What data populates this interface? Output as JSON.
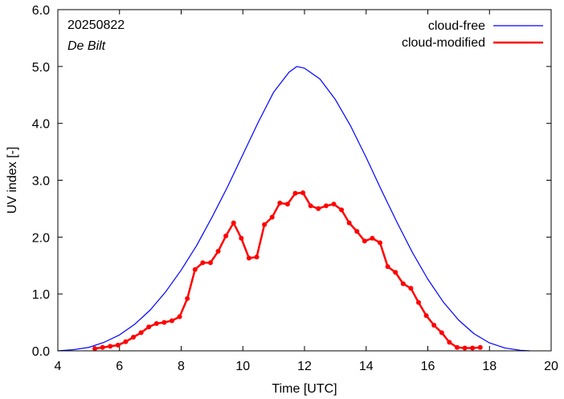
{
  "chart_data": {
    "type": "line",
    "annotations": {
      "date": "20250822",
      "location": "De Bilt"
    },
    "xlabel": "Time  [UTC]",
    "ylabel": "UV index  [-]",
    "xlim": [
      4,
      20
    ],
    "ylim": [
      0,
      6
    ],
    "xticks": [
      4,
      6,
      8,
      10,
      12,
      14,
      16,
      18,
      20
    ],
    "xtick_labels": [
      "4",
      "6",
      "8",
      "10",
      "12",
      "14",
      "16",
      "18",
      "20"
    ],
    "yticks": [
      0,
      1,
      2,
      3,
      4,
      5,
      6
    ],
    "ytick_labels": [
      "0.0",
      "1.0",
      "2.0",
      "3.0",
      "4.0",
      "5.0",
      "6.0"
    ],
    "grid": false,
    "legend_position": "top-right",
    "series": [
      {
        "name": "cloud-free",
        "color": "#0000ff",
        "markers": false,
        "x": [
          4.0,
          4.5,
          5.0,
          5.5,
          6.0,
          6.5,
          7.0,
          7.5,
          8.0,
          8.5,
          9.0,
          9.5,
          10.0,
          10.5,
          11.0,
          11.5,
          11.75,
          12.0,
          12.5,
          13.0,
          13.5,
          14.0,
          14.5,
          15.0,
          15.5,
          16.0,
          16.5,
          17.0,
          17.5,
          18.0,
          18.5,
          19.0,
          19.3
        ],
        "y": [
          0.0,
          0.02,
          0.06,
          0.15,
          0.28,
          0.47,
          0.72,
          1.04,
          1.42,
          1.85,
          2.35,
          2.88,
          3.45,
          4.02,
          4.55,
          4.9,
          5.0,
          4.97,
          4.78,
          4.42,
          3.95,
          3.4,
          2.82,
          2.26,
          1.73,
          1.26,
          0.86,
          0.54,
          0.3,
          0.14,
          0.05,
          0.01,
          0.0
        ]
      },
      {
        "name": "cloud-modified",
        "color": "#ff0000",
        "markers": true,
        "x": [
          5.2,
          5.45,
          5.7,
          5.95,
          6.2,
          6.45,
          6.7,
          6.95,
          7.2,
          7.45,
          7.7,
          7.95,
          8.2,
          8.45,
          8.7,
          8.95,
          9.2,
          9.45,
          9.7,
          9.95,
          10.2,
          10.45,
          10.7,
          10.95,
          11.2,
          11.45,
          11.7,
          11.95,
          12.2,
          12.45,
          12.7,
          12.95,
          13.2,
          13.45,
          13.7,
          13.95,
          14.2,
          14.45,
          14.7,
          14.95,
          15.2,
          15.45,
          15.7,
          15.95,
          16.2,
          16.45,
          16.7,
          16.95,
          17.2,
          17.45,
          17.7
        ],
        "y": [
          0.04,
          0.06,
          0.08,
          0.1,
          0.16,
          0.24,
          0.32,
          0.42,
          0.48,
          0.5,
          0.53,
          0.6,
          0.92,
          1.43,
          1.55,
          1.55,
          1.75,
          2.02,
          2.25,
          1.98,
          1.63,
          1.65,
          2.22,
          2.35,
          2.6,
          2.58,
          2.77,
          2.78,
          2.55,
          2.5,
          2.55,
          2.58,
          2.48,
          2.25,
          2.1,
          1.93,
          1.98,
          1.9,
          1.48,
          1.38,
          1.18,
          1.1,
          0.85,
          0.62,
          0.45,
          0.32,
          0.15,
          0.06,
          0.05,
          0.05,
          0.06
        ]
      }
    ]
  }
}
